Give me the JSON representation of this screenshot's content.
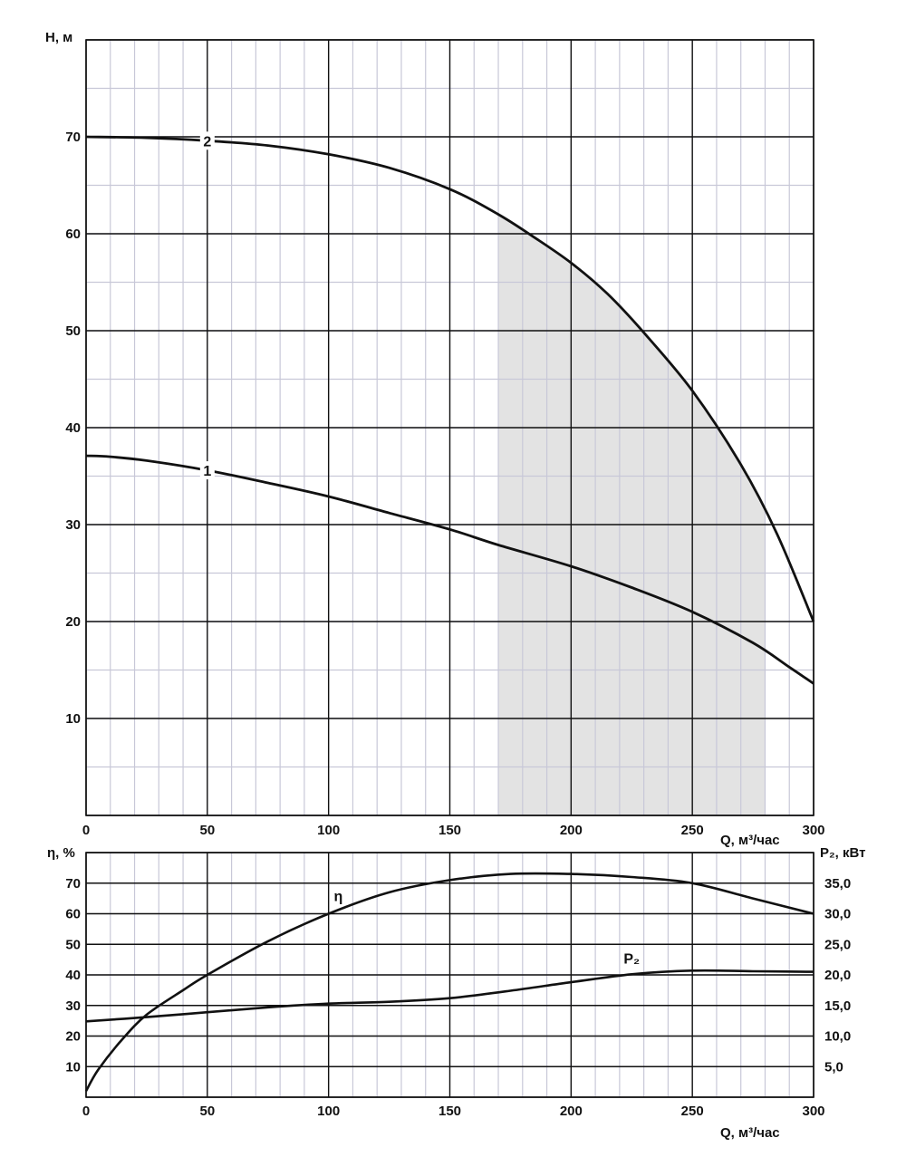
{
  "chart_data": [
    {
      "type": "line",
      "title": "",
      "xlabel": "Q, м³/час",
      "ylabel": "H, м",
      "xlim": [
        0,
        300
      ],
      "ylim": [
        0,
        80
      ],
      "x_ticks": [
        "0",
        "50",
        "100",
        "150",
        "200",
        "250",
        "300"
      ],
      "y_ticks": [
        "10",
        "20",
        "30",
        "40",
        "50",
        "60",
        "70"
      ],
      "grid": true,
      "shaded_range_x": [
        170,
        280
      ],
      "shade_color": "#e3e3e3",
      "series": [
        {
          "name": "1",
          "x": [
            0,
            10,
            25,
            50,
            75,
            100,
            125,
            150,
            170,
            200,
            225,
            250,
            275,
            290,
            300
          ],
          "y": [
            37.1,
            37.0,
            36.6,
            35.6,
            34.3,
            32.9,
            31.2,
            29.5,
            27.9,
            25.7,
            23.5,
            21.0,
            17.8,
            15.3,
            13.6
          ]
        },
        {
          "name": "2",
          "x": [
            0,
            25,
            50,
            75,
            100,
            125,
            150,
            170,
            185,
            200,
            215,
            230,
            250,
            270,
            285,
            300
          ],
          "y": [
            70.0,
            69.9,
            69.6,
            69.1,
            68.2,
            66.8,
            64.6,
            62.0,
            59.6,
            57.0,
            53.8,
            49.8,
            43.8,
            36.2,
            29.0,
            20.0
          ]
        }
      ],
      "curve_labels": [
        {
          "text": "2",
          "x": 0,
          "y": 0
        },
        {
          "text": "1",
          "x": 0,
          "y": 0
        }
      ]
    },
    {
      "type": "line",
      "title": "",
      "xlabel": "Q, м³/час",
      "ylabel_left": "η, %",
      "ylabel_right": "P₂, кВт",
      "xlim": [
        0,
        300
      ],
      "ylim_left": [
        0,
        80
      ],
      "ylim_right": [
        0,
        40
      ],
      "x_ticks": [
        "0",
        "50",
        "100",
        "150",
        "200",
        "250",
        "300"
      ],
      "y_ticks_left": [
        "10",
        "20",
        "30",
        "40",
        "50",
        "60",
        "70"
      ],
      "y_ticks_right": [
        "5,0",
        "10,0",
        "15,0",
        "20,0",
        "25,0",
        "30,0",
        "35,0"
      ],
      "grid": true,
      "series": [
        {
          "name": "η",
          "axis": "left",
          "x": [
            0,
            5,
            15,
            25,
            40,
            50,
            75,
            100,
            125,
            150,
            175,
            200,
            225,
            250,
            275,
            300
          ],
          "y": [
            2,
            9,
            19,
            27,
            35,
            40,
            51,
            60,
            67,
            71,
            73,
            73,
            72,
            70,
            65,
            60
          ]
        },
        {
          "name": "P₂",
          "axis": "right",
          "x": [
            0,
            25,
            50,
            75,
            100,
            125,
            150,
            175,
            200,
            225,
            250,
            275,
            300
          ],
          "y": [
            12.4,
            13.1,
            13.9,
            14.7,
            15.3,
            15.6,
            16.2,
            17.4,
            18.8,
            20.1,
            20.7,
            20.6,
            20.5
          ]
        }
      ]
    }
  ]
}
